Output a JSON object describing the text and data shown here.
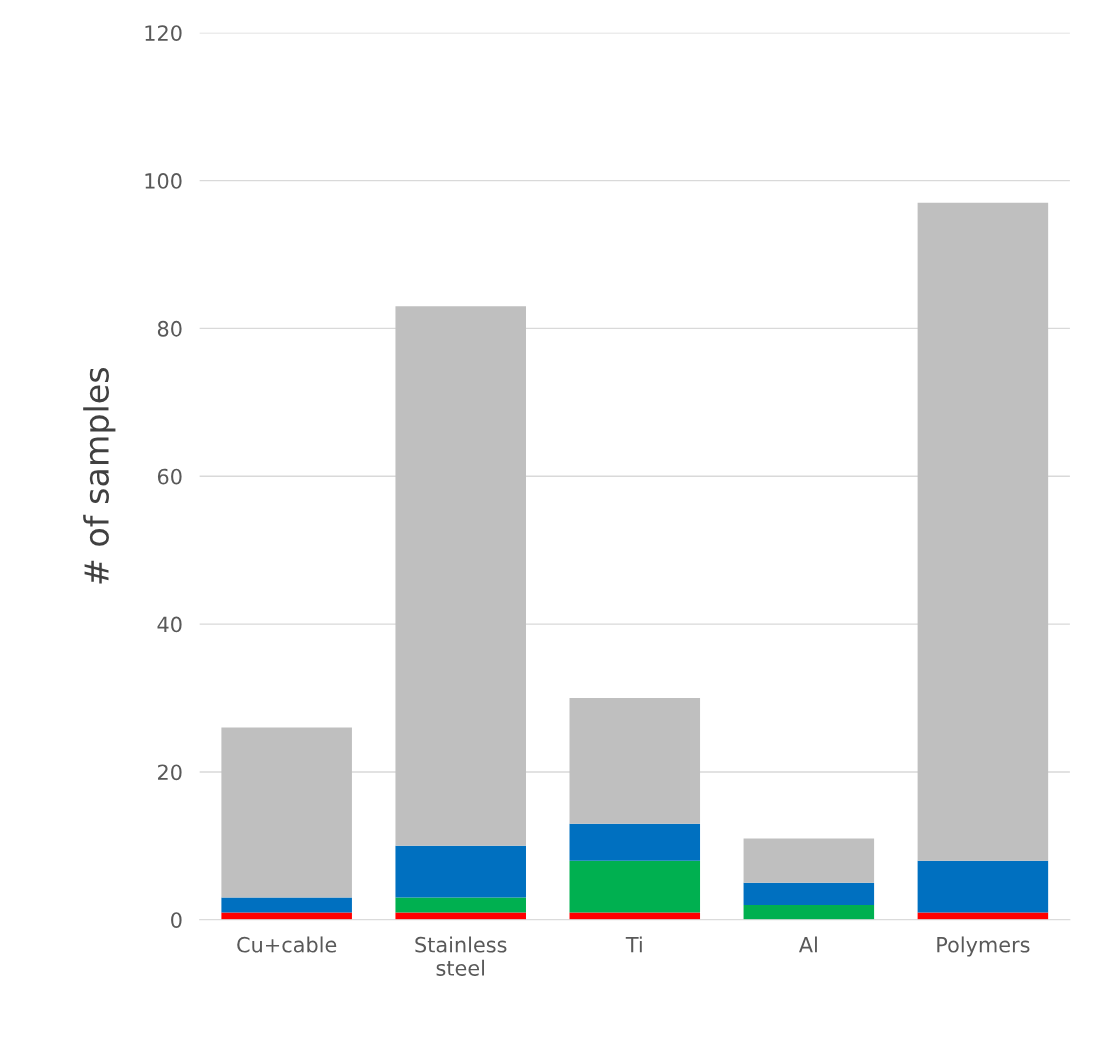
{
  "chart_data": {
    "type": "bar",
    "stacked": true,
    "ylabel": "# of samples",
    "categories": [
      "Cu+cable",
      "Stainless\nsteel",
      "Ti",
      "Al",
      "Polymers"
    ],
    "series": [
      {
        "color": "#ff0000",
        "values": [
          1,
          1,
          1,
          0,
          1
        ]
      },
      {
        "color": "#00b050",
        "values": [
          0,
          2,
          7,
          2,
          0
        ]
      },
      {
        "color": "#0070c0",
        "values": [
          2,
          7,
          5,
          3,
          7
        ]
      },
      {
        "color": "#bfbfbf",
        "values": [
          23,
          73,
          17,
          6,
          89
        ]
      }
    ],
    "ylim": [
      0,
      120
    ],
    "yticks": [
      0,
      20,
      40,
      60,
      80,
      100,
      120
    ],
    "grid": "y"
  }
}
